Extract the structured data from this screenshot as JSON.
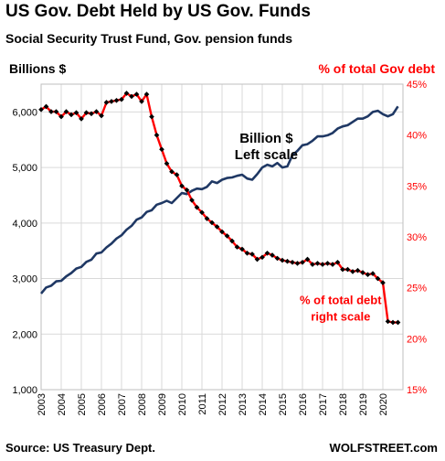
{
  "title": "US Gov. Debt Held by US Gov. Funds",
  "subtitle": "Social Security Trust Fund, Gov. pension funds",
  "source": "Source: US Treasury Dept.",
  "brand": "WOLFSTREET.com",
  "colors": {
    "left_series": "#1f3864",
    "right_series": "#ff0000",
    "marker": "#000000",
    "grid": "#d9d9d9"
  },
  "chart_data": {
    "type": "line",
    "grid": true,
    "left_axis": {
      "label": "Billions $",
      "ylim": [
        1000,
        6500
      ],
      "ticks": [
        1000,
        2000,
        3000,
        4000,
        5000,
        6000
      ],
      "tick_labels": [
        "1,000",
        "2,000",
        "3,000",
        "4,000",
        "5,000",
        "6,000"
      ]
    },
    "right_axis": {
      "label": "% of total Gov debt",
      "ylim": [
        15,
        45
      ],
      "ticks": [
        15,
        20,
        25,
        30,
        35,
        40,
        45
      ],
      "tick_labels": [
        "15%",
        "20%",
        "25%",
        "30%",
        "35%",
        "40%",
        "45%"
      ]
    },
    "x_axis": {
      "xlim": [
        2003,
        2021
      ],
      "ticks": [
        2003,
        2004,
        2005,
        2006,
        2007,
        2008,
        2009,
        2010,
        2011,
        2012,
        2013,
        2014,
        2015,
        2016,
        2017,
        2018,
        2019,
        2020
      ],
      "tick_labels": [
        "2003",
        "2004",
        "2005",
        "2006",
        "2007",
        "2008",
        "2009",
        "2010",
        "2011",
        "2012",
        "2013",
        "2014",
        "2015",
        "2016",
        "2017",
        "2018",
        "2019",
        "2020"
      ]
    },
    "annotations": [
      {
        "lines": [
          "Billion $",
          "Left scale"
        ],
        "x": 2014.2,
        "y_left": 5450,
        "color": "#000000"
      },
      {
        "lines": [
          "% of total debt",
          "right scale"
        ],
        "x": 2017.9,
        "y_left": 2540,
        "color": "#ff0000"
      }
    ],
    "series": [
      {
        "axis": "left",
        "x": [
          2003.0,
          2003.25,
          2003.5,
          2003.75,
          2004.0,
          2004.25,
          2004.5,
          2004.75,
          2005.0,
          2005.25,
          2005.5,
          2005.75,
          2006.0,
          2006.25,
          2006.5,
          2006.75,
          2007.0,
          2007.25,
          2007.5,
          2007.75,
          2008.0,
          2008.25,
          2008.5,
          2008.75,
          2009.0,
          2009.25,
          2009.5,
          2009.75,
          2010.0,
          2010.25,
          2010.5,
          2010.75,
          2011.0,
          2011.25,
          2011.5,
          2011.75,
          2012.0,
          2012.25,
          2012.5,
          2012.75,
          2013.0,
          2013.25,
          2013.5,
          2013.75,
          2014.0,
          2014.25,
          2014.5,
          2014.75,
          2015.0,
          2015.25,
          2015.5,
          2015.75,
          2016.0,
          2016.25,
          2016.5,
          2016.75,
          2017.0,
          2017.25,
          2017.5,
          2017.75,
          2018.0,
          2018.25,
          2018.5,
          2018.75,
          2019.0,
          2019.25,
          2019.5,
          2019.75,
          2020.0,
          2020.25,
          2020.5,
          2020.75
        ],
        "values": [
          2730,
          2840,
          2870,
          2950,
          2960,
          3040,
          3100,
          3180,
          3210,
          3300,
          3340,
          3450,
          3470,
          3560,
          3630,
          3720,
          3780,
          3880,
          3950,
          4060,
          4100,
          4200,
          4230,
          4330,
          4360,
          4400,
          4360,
          4450,
          4540,
          4520,
          4580,
          4620,
          4610,
          4650,
          4750,
          4720,
          4780,
          4810,
          4820,
          4850,
          4870,
          4800,
          4780,
          4880,
          5000,
          5050,
          5020,
          5080,
          5000,
          5020,
          5220,
          5300,
          5400,
          5420,
          5480,
          5560,
          5560,
          5580,
          5620,
          5700,
          5740,
          5760,
          5820,
          5880,
          5880,
          5920,
          6000,
          6020,
          5960,
          5920,
          5960,
          6100
        ]
      },
      {
        "axis": "right",
        "markers": true,
        "x": [
          2003.0,
          2003.25,
          2003.5,
          2003.75,
          2004.0,
          2004.25,
          2004.5,
          2004.75,
          2005.0,
          2005.25,
          2005.5,
          2005.75,
          2006.0,
          2006.25,
          2006.5,
          2006.75,
          2007.0,
          2007.25,
          2007.5,
          2007.75,
          2008.0,
          2008.25,
          2008.5,
          2008.75,
          2009.0,
          2009.25,
          2009.5,
          2009.75,
          2010.0,
          2010.25,
          2010.5,
          2010.75,
          2011.0,
          2011.25,
          2011.5,
          2011.75,
          2012.0,
          2012.25,
          2012.5,
          2012.75,
          2013.0,
          2013.25,
          2013.5,
          2013.75,
          2014.0,
          2014.25,
          2014.5,
          2014.75,
          2015.0,
          2015.25,
          2015.5,
          2015.75,
          2016.0,
          2016.25,
          2016.5,
          2016.75,
          2017.0,
          2017.25,
          2017.5,
          2017.75,
          2018.0,
          2018.25,
          2018.5,
          2018.75,
          2019.0,
          2019.25,
          2019.5,
          2019.75,
          2020.0,
          2020.25,
          2020.5,
          2020.75
        ],
        "values": [
          42.5,
          42.8,
          42.3,
          42.3,
          41.8,
          42.3,
          42.0,
          42.2,
          41.6,
          42.2,
          42.1,
          42.3,
          41.9,
          43.2,
          43.3,
          43.4,
          43.5,
          44.1,
          43.8,
          44.0,
          43.3,
          44.0,
          41.8,
          40.0,
          38.6,
          37.2,
          36.4,
          36.1,
          35.0,
          34.6,
          33.6,
          32.9,
          32.4,
          31.8,
          31.4,
          31.0,
          30.5,
          30.1,
          29.6,
          29.0,
          28.8,
          28.4,
          28.3,
          27.8,
          28.0,
          28.4,
          28.2,
          27.9,
          27.7,
          27.6,
          27.5,
          27.4,
          27.5,
          27.8,
          27.3,
          27.4,
          27.3,
          27.4,
          27.3,
          27.5,
          26.8,
          26.8,
          26.6,
          26.7,
          26.5,
          26.3,
          26.4,
          25.9,
          25.5,
          21.7,
          21.6,
          21.6
        ]
      }
    ]
  }
}
